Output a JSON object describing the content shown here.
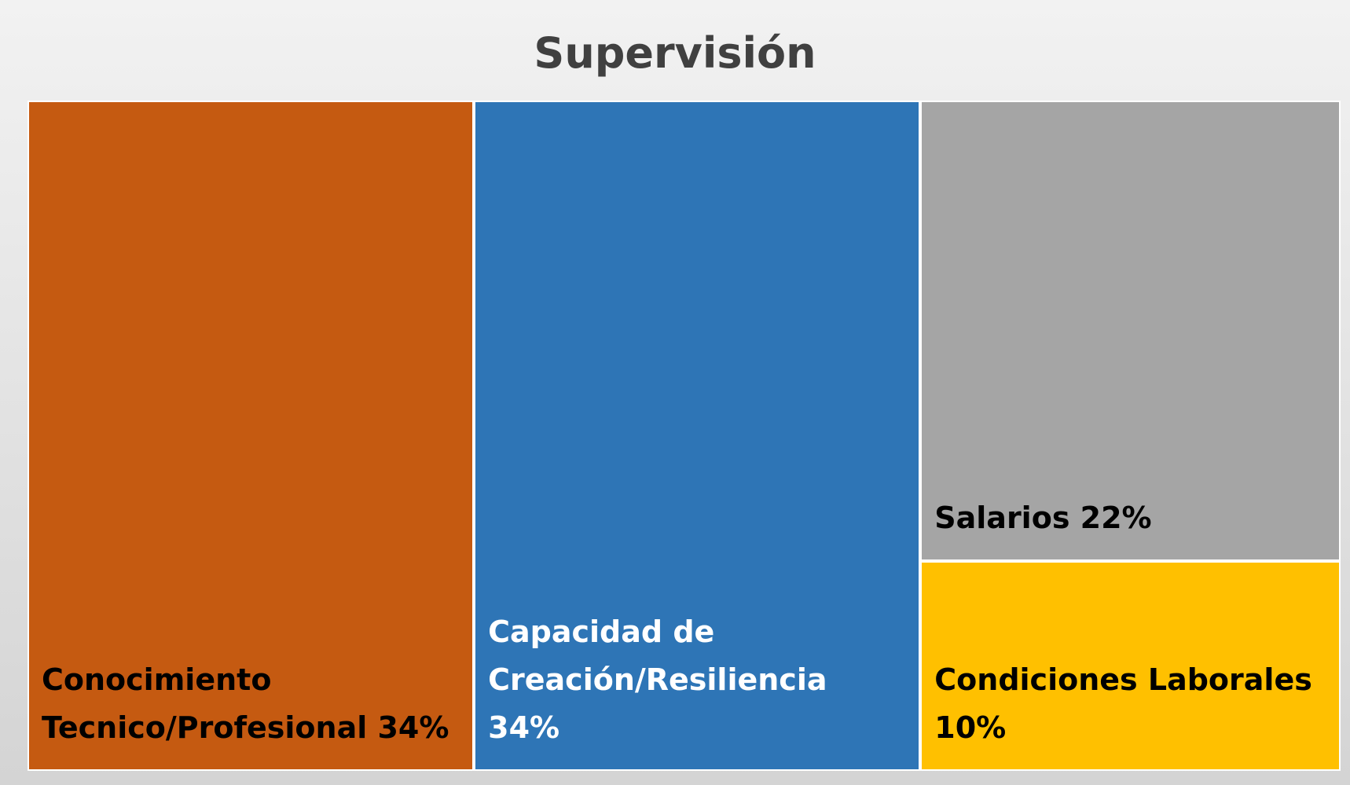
{
  "chart_data": {
    "type": "treemap",
    "title": "Supervisión",
    "categories": [
      "Conocimiento Tecnico/Profesional",
      "Capacidad de Creación/Resiliencia",
      "Salarios",
      "Condiciones Laborales"
    ],
    "values": [
      34,
      34,
      22,
      10
    ],
    "value_labels": [
      "34%",
      "34%",
      "22%",
      "10%"
    ],
    "colors": [
      "#c55a11",
      "#2e75b6",
      "#a5a5a5",
      "#ffc000"
    ],
    "label_colors": [
      "#000000",
      "#ffffff",
      "#000000",
      "#000000"
    ]
  }
}
